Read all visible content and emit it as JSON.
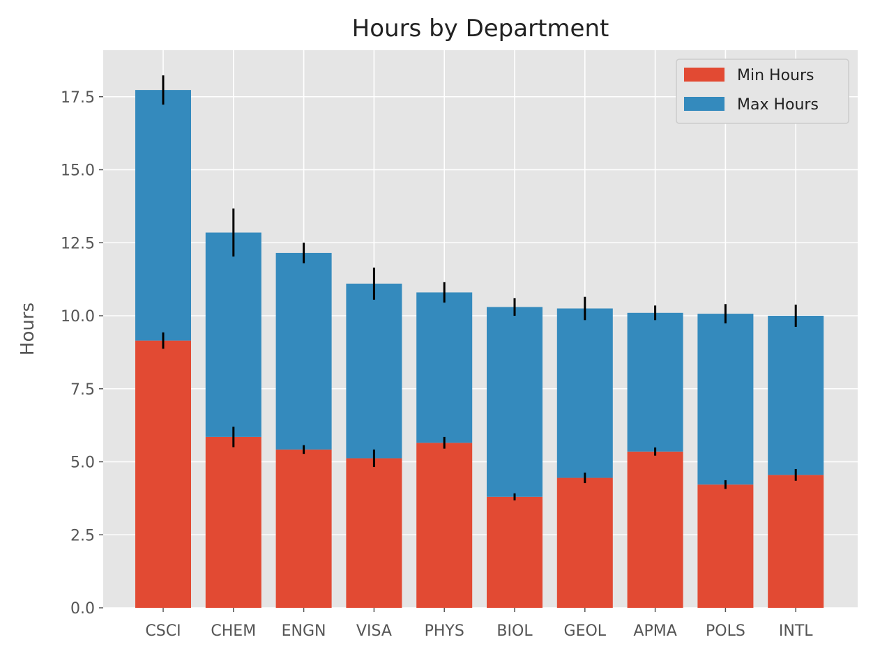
{
  "chart_data": {
    "type": "bar",
    "stacked": true,
    "title": "Hours by Department",
    "xlabel": "",
    "ylabel": "Hours",
    "ylim": [
      0,
      18.6
    ],
    "yticks": [
      "0.0",
      "2.5",
      "5.0",
      "7.5",
      "10.0",
      "12.5",
      "15.0",
      "17.5"
    ],
    "categories": [
      "CSCI",
      "CHEM",
      "ENGN",
      "VISA",
      "PHYS",
      "BIOL",
      "GEOL",
      "APMA",
      "POLS",
      "INTL"
    ],
    "grid": true,
    "legend_position": "top-right",
    "series": [
      {
        "name": "Min Hours",
        "color": "#E24A33",
        "values": [
          9.15,
          5.85,
          5.42,
          5.12,
          5.65,
          3.8,
          4.45,
          5.35,
          4.22,
          4.55
        ],
        "errors": [
          0.28,
          0.35,
          0.15,
          0.3,
          0.2,
          0.12,
          0.18,
          0.14,
          0.15,
          0.2
        ]
      },
      {
        "name": "Max Hours",
        "color": "#348ABD",
        "values": [
          8.58,
          7.0,
          6.73,
          5.98,
          5.15,
          6.5,
          5.8,
          4.75,
          5.85,
          5.45
        ],
        "errors": [
          0.5,
          0.82,
          0.35,
          0.55,
          0.35,
          0.3,
          0.4,
          0.25,
          0.33,
          0.38
        ]
      }
    ]
  }
}
